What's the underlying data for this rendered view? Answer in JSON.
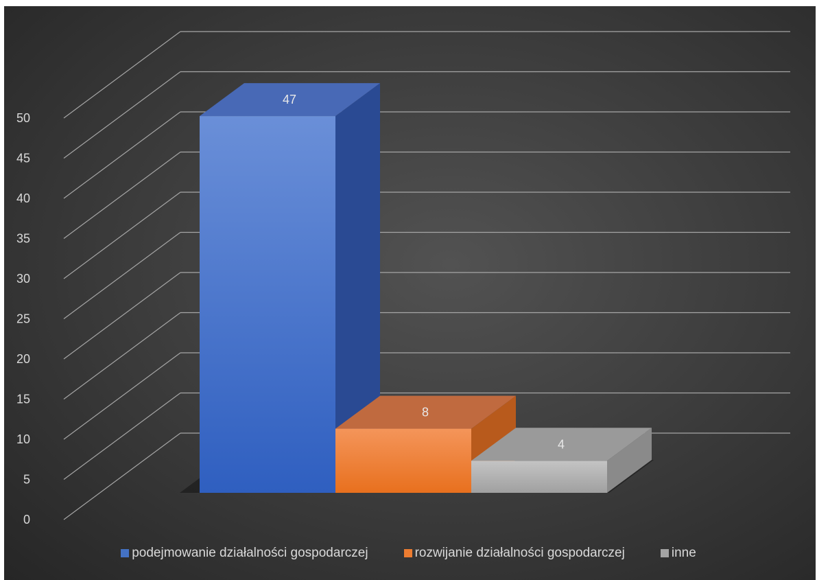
{
  "chart_data": {
    "type": "bar",
    "title": "",
    "xlabel": "",
    "ylabel": "",
    "categories": [
      "podejmowanie działalności gospodarczej",
      "rozwijanie działalności gospodarczej",
      "inne"
    ],
    "values": [
      47,
      8,
      4
    ],
    "colors": [
      "#4472c4",
      "#ed7d31",
      "#a5a5a5"
    ],
    "ylim": [
      0,
      50
    ],
    "y_ticks": [
      "0",
      "5",
      "10",
      "15",
      "20",
      "25",
      "30",
      "35",
      "40",
      "45",
      "50"
    ],
    "data_labels": [
      "47",
      "8",
      "4"
    ],
    "grid": true,
    "style": "3d-column",
    "legend": "bottom"
  }
}
